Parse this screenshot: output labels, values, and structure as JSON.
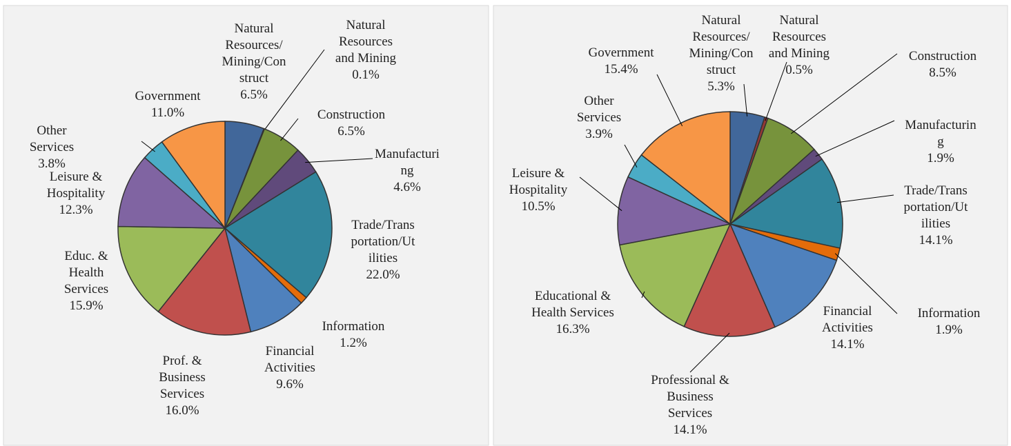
{
  "chart_data": [
    {
      "type": "pie",
      "categories": [
        "Natural Resources/Mining/Construct",
        "Natural Resources and Mining",
        "Construction",
        "Manufacturing",
        "Trade/Transportation/Utilities",
        "Information",
        "Financial Activities",
        "Prof. & Business Services",
        "Educ. & Health Services",
        "Leisure & Hospitality",
        "Other Services",
        "Government"
      ],
      "values": [
        6.5,
        0.1,
        6.5,
        4.6,
        22.0,
        1.2,
        9.6,
        16.0,
        15.9,
        12.3,
        3.8,
        11.0
      ],
      "value_labels": [
        "6.5%",
        "0.1%",
        "6.5%",
        "4.6%",
        "22.0%",
        "1.2%",
        "9.6%",
        "16.0%",
        "15.9%",
        "12.3%",
        "3.8%",
        "11.0%"
      ],
      "colors": [
        "#41679a",
        "#953735",
        "#77933c",
        "#604a7b",
        "#31859c",
        "#e46c0a",
        "#4f81bd",
        "#c0504d",
        "#9bbb59",
        "#8064a2",
        "#4bacc6",
        "#f79646"
      ]
    },
    {
      "type": "pie",
      "categories": [
        "Natural Resources/Mining/Construct",
        "Natural Resources and Mining",
        "Construction",
        "Manufacturing",
        "Trade/Transportation/Utilities",
        "Information",
        "Financial Activities",
        "Professional & Business Services",
        "Educational & Health Services",
        "Leisure & Hospitality",
        "Other Services",
        "Government"
      ],
      "values": [
        5.3,
        0.5,
        8.5,
        1.9,
        14.1,
        1.9,
        14.1,
        14.1,
        16.3,
        10.5,
        3.9,
        15.4
      ],
      "value_labels": [
        "5.3%",
        "0.5%",
        "8.5%",
        "1.9%",
        "14.1%",
        "1.9%",
        "14.1%",
        "14.1%",
        "16.3%",
        "10.5%",
        "3.9%",
        "15.4%"
      ],
      "colors": [
        "#41679a",
        "#953735",
        "#77933c",
        "#604a7b",
        "#31859c",
        "#e46c0a",
        "#4f81bd",
        "#c0504d",
        "#9bbb59",
        "#8064a2",
        "#4bacc6",
        "#f79646"
      ]
    }
  ]
}
